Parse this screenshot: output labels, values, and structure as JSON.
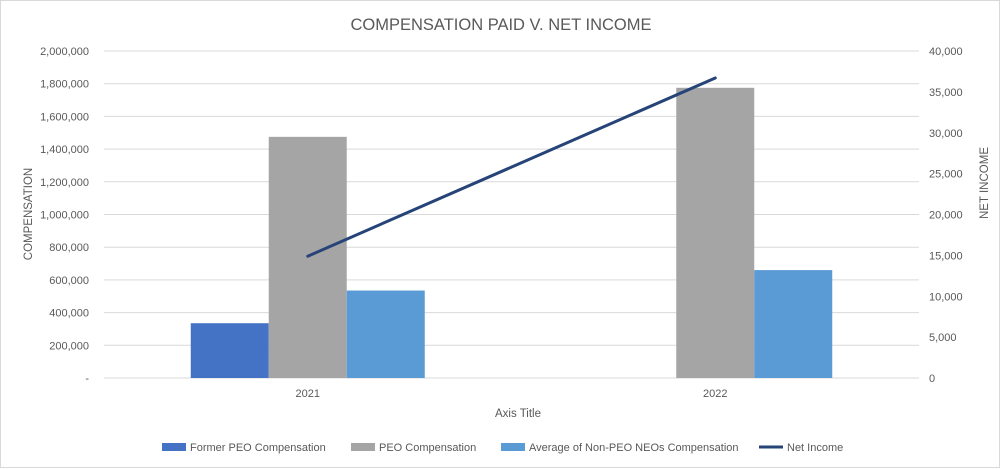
{
  "chart_data": {
    "type": "bar",
    "title": "COMPENSATION PAID V. NET INCOME",
    "xlabel": "Axis Title",
    "ylabel": "COMPENSATION",
    "y2label": "NET INCOME",
    "categories": [
      "2021",
      "2022"
    ],
    "ylim": [
      0,
      2000000
    ],
    "y2lim": [
      0,
      40000
    ],
    "y_ticks": [
      "-",
      "200,000",
      "400,000",
      "600,000",
      "800,000",
      "1,000,000",
      "1,200,000",
      "1,400,000",
      "1,600,000",
      "1,800,000",
      "2,000,000"
    ],
    "y2_ticks": [
      "0",
      "5,000",
      "10,000",
      "15,000",
      "20,000",
      "25,000",
      "30,000",
      "35,000",
      "40,000"
    ],
    "grid": true,
    "legend_position": "bottom",
    "series": [
      {
        "name": "Former PEO Compensation",
        "type": "bar",
        "axis": "left",
        "color": "#4472c4",
        "values": [
          335000,
          null
        ]
      },
      {
        "name": "PEO Compensation",
        "type": "bar",
        "axis": "left",
        "color": "#a5a5a5",
        "values": [
          1475000,
          1775000
        ]
      },
      {
        "name": "Average of Non-PEO NEOs Compensation",
        "type": "bar",
        "axis": "left",
        "color": "#5b9bd5",
        "values": [
          535000,
          660000
        ]
      },
      {
        "name": "Net Income",
        "type": "line",
        "axis": "right",
        "color": "#264478",
        "values": [
          14900,
          36700
        ]
      }
    ]
  }
}
